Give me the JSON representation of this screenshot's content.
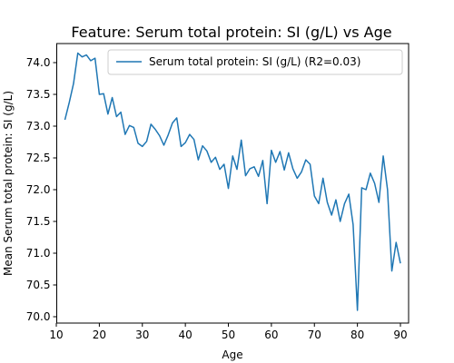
{
  "chart_data": {
    "type": "line",
    "title": "Feature: Serum total protein:  SI (g/L) vs Age",
    "xlabel": "Age",
    "ylabel": "Mean Serum total protein:  SI (g/L)",
    "xlim": [
      10.1,
      91.9
    ],
    "ylim": [
      69.9,
      74.3
    ],
    "xticks": [
      10,
      20,
      30,
      40,
      50,
      60,
      70,
      80,
      90
    ],
    "yticks": [
      70.0,
      70.5,
      71.0,
      71.5,
      72.0,
      72.5,
      73.0,
      73.5,
      74.0
    ],
    "grid": false,
    "legend_position": "top-right",
    "series": [
      {
        "name": "Serum total protein:  SI (g/L) (R2=0.03)",
        "color": "#1f77b4",
        "x": [
          12,
          13,
          14,
          15,
          16,
          17,
          18,
          19,
          20,
          21,
          22,
          23,
          24,
          25,
          26,
          27,
          28,
          29,
          30,
          31,
          32,
          33,
          34,
          35,
          36,
          37,
          38,
          39,
          40,
          41,
          42,
          43,
          44,
          45,
          46,
          47,
          48,
          49,
          50,
          51,
          52,
          53,
          54,
          55,
          56,
          57,
          58,
          59,
          60,
          61,
          62,
          63,
          64,
          65,
          66,
          67,
          68,
          69,
          70,
          71,
          72,
          73,
          74,
          75,
          76,
          77,
          78,
          79,
          80,
          81,
          82,
          83,
          84,
          85,
          86,
          87,
          88,
          89,
          90
        ],
        "y": [
          73.1,
          73.37,
          73.67,
          74.15,
          74.09,
          74.12,
          74.03,
          74.07,
          73.5,
          73.51,
          73.19,
          73.45,
          73.15,
          73.22,
          72.87,
          73.01,
          72.98,
          72.73,
          72.68,
          72.76,
          73.03,
          72.95,
          72.85,
          72.7,
          72.86,
          73.05,
          73.13,
          72.68,
          72.74,
          72.87,
          72.79,
          72.47,
          72.69,
          72.61,
          72.43,
          72.51,
          72.32,
          72.4,
          72.02,
          72.53,
          72.32,
          72.78,
          72.22,
          72.33,
          72.36,
          72.21,
          72.46,
          71.78,
          72.62,
          72.43,
          72.6,
          72.31,
          72.58,
          72.33,
          72.18,
          72.28,
          72.47,
          72.4,
          71.9,
          71.78,
          72.18,
          71.8,
          71.6,
          71.84,
          71.5,
          71.78,
          71.93,
          71.45,
          70.1,
          72.03,
          72.0,
          72.26,
          72.1,
          71.8,
          72.53,
          72.0,
          70.72,
          71.17,
          70.84
        ]
      }
    ]
  }
}
